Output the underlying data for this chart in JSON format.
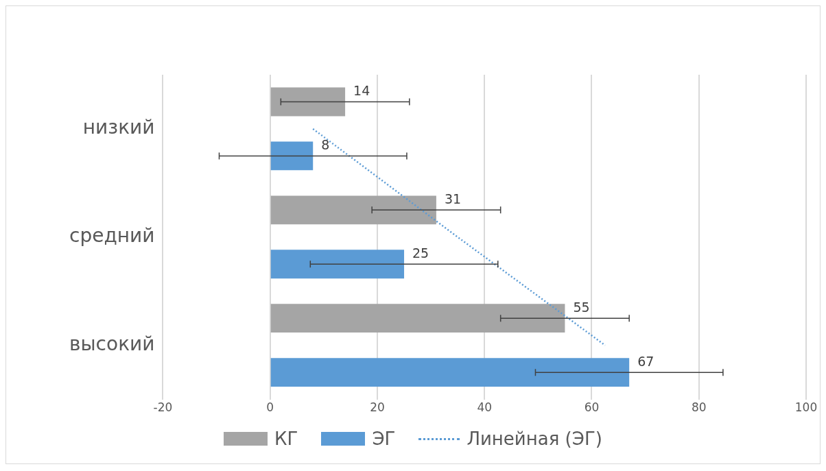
{
  "chart_data": {
    "type": "bar",
    "orientation": "horizontal",
    "categories": [
      "низкий",
      "средний",
      "высокий"
    ],
    "series": [
      {
        "name": "КГ",
        "color": "#a5a5a5",
        "values": [
          14,
          31,
          55
        ],
        "errors": [
          12,
          12,
          12
        ],
        "value_labels": [
          "14",
          "31",
          "55"
        ]
      },
      {
        "name": "ЭГ",
        "color": "#5b9bd5",
        "values": [
          8,
          25,
          67
        ],
        "errors": [
          17.5,
          17.5,
          17.5
        ],
        "value_labels": [
          "8",
          "25",
          "67"
        ]
      },
      {
        "name": "Линейная (ЭГ)",
        "type": "line",
        "color": "#5b9bd5",
        "line_style": "dotted",
        "marker": "none",
        "values": [
          8,
          35,
          62.5
        ]
      }
    ],
    "xlim": [
      -20,
      100
    ],
    "xticks": [
      -20,
      0,
      20,
      40,
      60,
      80,
      100
    ],
    "grid": "x",
    "legend": "bottom"
  }
}
